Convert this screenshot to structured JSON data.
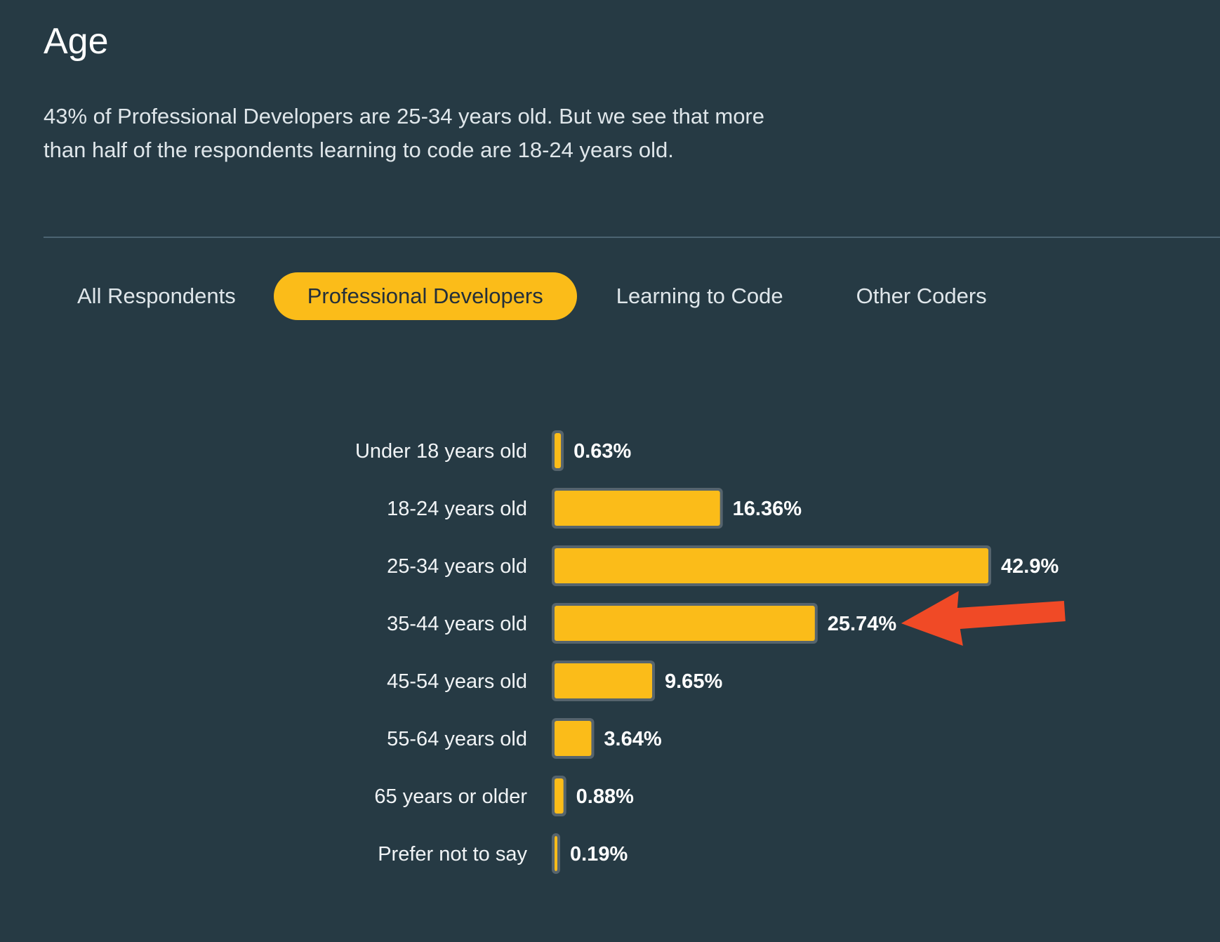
{
  "section": {
    "title": "Age",
    "description": "43% of Professional Developers are 25-34 years old. But we see that more than half of the respondents learning to code are 18-24 years old."
  },
  "tabs": [
    {
      "label": "All Respondents",
      "active": false
    },
    {
      "label": "Professional Developers",
      "active": true
    },
    {
      "label": "Learning to Code",
      "active": false
    },
    {
      "label": "Other Coders",
      "active": false
    }
  ],
  "colors": {
    "background": "#263a44",
    "accent": "#fbbc19",
    "bar_outline": "#56646d",
    "annotation_arrow": "#f04a26"
  },
  "chart_data": {
    "type": "bar",
    "orientation": "horizontal",
    "categories": [
      "Under 18 years old",
      "18-24 years old",
      "25-34 years old",
      "35-44 years old",
      "45-54 years old",
      "55-64 years old",
      "65 years or older",
      "Prefer not to say"
    ],
    "values": [
      0.63,
      16.36,
      42.9,
      25.74,
      9.65,
      3.64,
      0.88,
      0.19
    ],
    "value_labels": [
      "0.63%",
      "16.36%",
      "42.9%",
      "25.74%",
      "9.65%",
      "3.64%",
      "0.88%",
      "0.19%"
    ],
    "grid": false,
    "legend": "none",
    "annotation": {
      "type": "arrow",
      "target_category": "35-44 years old"
    }
  }
}
